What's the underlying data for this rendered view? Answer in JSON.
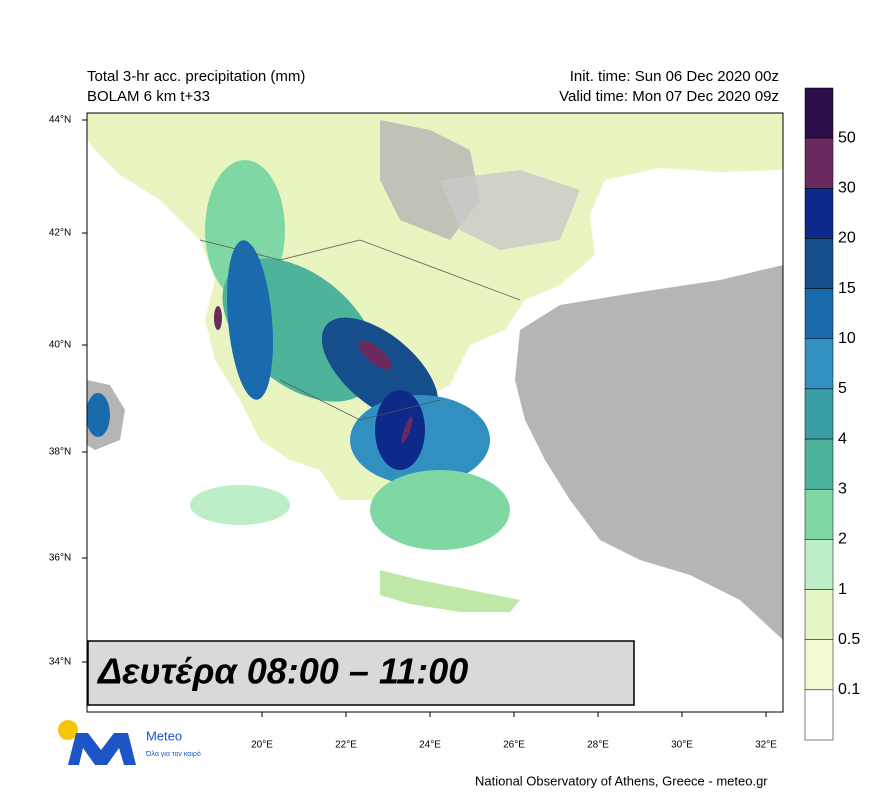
{
  "header": {
    "left_line1": "Total 3-hr acc. precipitation (mm)",
    "left_line2": "BOLAM 6 km t+33",
    "right_line1": "Init. time: Sun 06 Dec 2020 00z",
    "right_line2": "Valid time: Mon 07 Dec 2020 09z"
  },
  "latitude_labels": [
    "44°N",
    "42°N",
    "40°N",
    "38°N",
    "36°N",
    "34°N"
  ],
  "longitude_labels": [
    "20°E",
    "22°E",
    "24°E",
    "26°E",
    "28°E",
    "30°E",
    "32°E"
  ],
  "colorbar": {
    "labels": [
      "50",
      "30",
      "20",
      "15",
      "10",
      "5",
      "4",
      "3",
      "2",
      "1",
      "0.5",
      "0.1"
    ],
    "colors": [
      "#2a0f4a",
      "#6b2a5e",
      "#0d2a8a",
      "#154e8a",
      "#1a6aae",
      "#3190c0",
      "#3a9ea6",
      "#4db39a",
      "#7fd8a4",
      "#bcefc8",
      "#e8f7c6",
      "#f4f9d4",
      "#ffffff"
    ]
  },
  "overlay": {
    "text": "Δευτέρα 08:00 – 11:00"
  },
  "logo": {
    "name": "Meteo",
    "tagline": "Όλα για τον καιρό"
  },
  "footer": {
    "credit": "National Observatory of Athens, Greece - meteo.gr"
  }
}
